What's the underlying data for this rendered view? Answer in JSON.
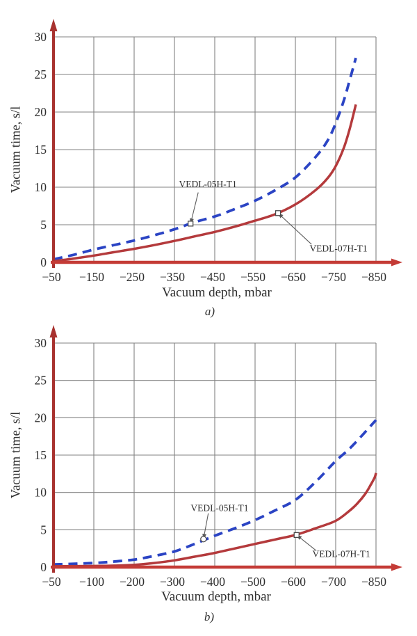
{
  "figure": {
    "background": "#ffffff",
    "grid_color": "#828282",
    "axis_color": "#a8322f",
    "axis_color2": "#c43b36",
    "text_color": "#2f2f2f",
    "leader_color": "#5c5c5c"
  },
  "chart_data": [
    {
      "type": "line",
      "sublabel": "a)",
      "xlabel": "Vacuum depth, mbar",
      "ylabel": "Vacuum time, s/l",
      "x_ticks": [
        -50,
        -150,
        -250,
        -350,
        -450,
        -550,
        -650,
        -750,
        -850
      ],
      "x_tick_labels": [
        "−50",
        "−150",
        "−250",
        "−350",
        "−450",
        "−550",
        "−650",
        "−750",
        "−850"
      ],
      "y_ticks": [
        0,
        5,
        10,
        15,
        20,
        25,
        30
      ],
      "ylim": [
        0,
        30
      ],
      "grid": true,
      "legend_position": "inline-annotations",
      "series": [
        {
          "name": "VEDL-05H-T1",
          "color": "#2b44c4",
          "style": "dashed",
          "points": [
            [
              -50,
              0.4
            ],
            [
              -100,
              1.0
            ],
            [
              -150,
              1.7
            ],
            [
              -200,
              2.3
            ],
            [
              -250,
              2.9
            ],
            [
              -300,
              3.6
            ],
            [
              -350,
              4.4
            ],
            [
              -400,
              5.35
            ],
            [
              -450,
              6.1
            ],
            [
              -500,
              7.1
            ],
            [
              -550,
              8.2
            ],
            [
              -600,
              9.6
            ],
            [
              -650,
              11.3
            ],
            [
              -700,
              14.0
            ],
            [
              -730,
              16.2
            ],
            [
              -750,
              18.5
            ],
            [
              -770,
              21.5
            ],
            [
              -785,
              24.3
            ],
            [
              -800,
              27.2
            ]
          ]
        },
        {
          "name": "VEDL-07H-T1",
          "color": "#b43a3c",
          "style": "solid",
          "points": [
            [
              -50,
              0.15
            ],
            [
              -100,
              0.5
            ],
            [
              -150,
              0.9
            ],
            [
              -200,
              1.35
            ],
            [
              -250,
              1.8
            ],
            [
              -300,
              2.3
            ],
            [
              -350,
              2.85
            ],
            [
              -400,
              3.45
            ],
            [
              -450,
              4.05
            ],
            [
              -500,
              4.75
            ],
            [
              -550,
              5.55
            ],
            [
              -600,
              6.4
            ],
            [
              -650,
              7.7
            ],
            [
              -700,
              9.6
            ],
            [
              -730,
              11.2
            ],
            [
              -750,
              12.8
            ],
            [
              -770,
              15.2
            ],
            [
              -785,
              17.8
            ],
            [
              -800,
              21.0
            ]
          ]
        }
      ],
      "annotations": [
        {
          "text": "VEDL-05H-T1",
          "target": [
            -390,
            5.15
          ],
          "marker": "square",
          "label_at": [
            -433,
            10.4
          ],
          "leader_from": [
            -409,
            9.3
          ]
        },
        {
          "text": "VEDL-07H-T1",
          "target": [
            -607,
            6.55
          ],
          "marker": "square",
          "label_at": [
            -757,
            1.85
          ],
          "leader_from": [
            -690,
            2.4
          ]
        }
      ]
    },
    {
      "type": "line",
      "sublabel": "b)",
      "xlabel": "Vacuum depth, mbar",
      "ylabel": "Vacuum time, s/l",
      "x_ticks": [
        -50,
        -100,
        -200,
        -300,
        -400,
        -500,
        -600,
        -700,
        -850
      ],
      "x_tick_labels": [
        "−50",
        "−100",
        "−200",
        "−300",
        "−400",
        "−500",
        "−600",
        "−700",
        "−850"
      ],
      "y_ticks": [
        0,
        5,
        10,
        15,
        20,
        25,
        30
      ],
      "ylim": [
        0,
        30
      ],
      "grid": true,
      "legend_position": "inline-annotations",
      "series": [
        {
          "name": "VEDL-05H-T1",
          "color": "#2b44c4",
          "style": "dashed",
          "points": [
            [
              -50,
              0.35
            ],
            [
              -100,
              0.55
            ],
            [
              -150,
              0.75
            ],
            [
              -200,
              1.0
            ],
            [
              -250,
              1.5
            ],
            [
              -300,
              2.1
            ],
            [
              -350,
              3.1
            ],
            [
              -400,
              4.2
            ],
            [
              -450,
              5.2
            ],
            [
              -500,
              6.3
            ],
            [
              -550,
              7.6
            ],
            [
              -600,
              9.0
            ],
            [
              -650,
              11.4
            ],
            [
              -700,
              14.2
            ],
            [
              -750,
              15.8
            ],
            [
              -800,
              17.7
            ],
            [
              -850,
              19.7
            ]
          ]
        },
        {
          "name": "VEDL-07H-T1",
          "color": "#b43a3c",
          "style": "solid",
          "points": [
            [
              -50,
              0.1
            ],
            [
              -100,
              0.15
            ],
            [
              -150,
              0.2
            ],
            [
              -200,
              0.3
            ],
            [
              -250,
              0.55
            ],
            [
              -300,
              0.9
            ],
            [
              -350,
              1.4
            ],
            [
              -400,
              1.9
            ],
            [
              -450,
              2.5
            ],
            [
              -500,
              3.1
            ],
            [
              -550,
              3.7
            ],
            [
              -600,
              4.3
            ],
            [
              -650,
              5.2
            ],
            [
              -700,
              6.2
            ],
            [
              -750,
              7.5
            ],
            [
              -780,
              8.5
            ],
            [
              -810,
              9.8
            ],
            [
              -830,
              11.0
            ],
            [
              -845,
              12.0
            ],
            [
              -850,
              12.6
            ]
          ]
        }
      ],
      "annotations": [
        {
          "text": "VEDL-05H-T1",
          "target": [
            -372,
            3.75
          ],
          "marker": "circle",
          "label_at": [
            -412,
            7.9
          ],
          "leader_from": [
            -384,
            7.2
          ]
        },
        {
          "text": "VEDL-07H-T1",
          "target": [
            -603,
            4.3
          ],
          "marker": "square",
          "label_at": [
            -721,
            1.75
          ],
          "leader_from": [
            -652,
            2.2
          ]
        }
      ]
    }
  ]
}
